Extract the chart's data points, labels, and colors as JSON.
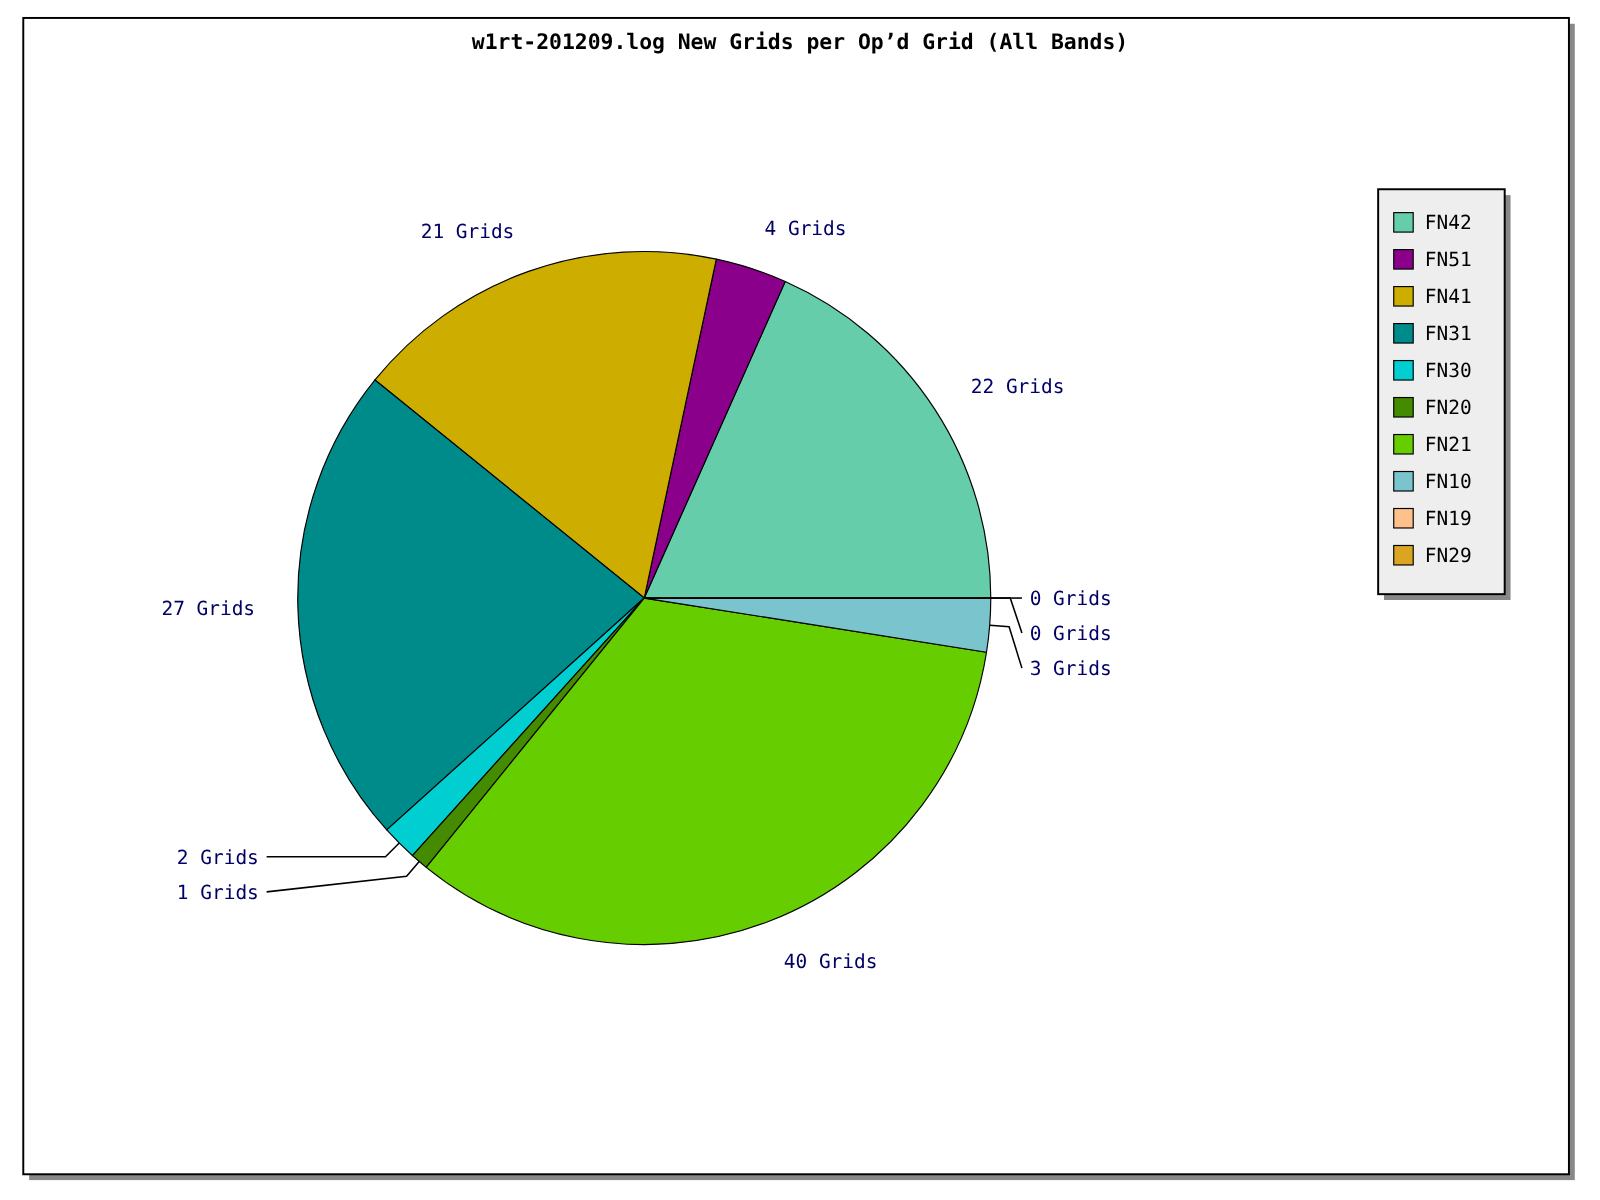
{
  "chart_data": {
    "type": "pie",
    "title": "w1rt-201209.log New Grids per Op’d Grid (All Bands)",
    "categories": [
      "FN42",
      "FN51",
      "FN41",
      "FN31",
      "FN30",
      "FN20",
      "FN21",
      "FN10",
      "FN19",
      "FN29"
    ],
    "values": [
      22,
      4,
      21,
      27,
      2,
      1,
      40,
      3,
      0,
      0
    ],
    "value_labels": [
      "22 Grids",
      "4 Grids",
      "21 Grids",
      "27 Grids",
      "2 Grids",
      "1 Grids",
      "40 Grids",
      "3 Grids",
      "0 Grids",
      "0 Grids"
    ],
    "colors": [
      "#66cdaa",
      "#8b008b",
      "#cdad00",
      "#008b8b",
      "#00ced1",
      "#458b00",
      "#66cd00",
      "#7ac5cd",
      "#ffc18a",
      "#daa520"
    ],
    "legend": "right"
  }
}
